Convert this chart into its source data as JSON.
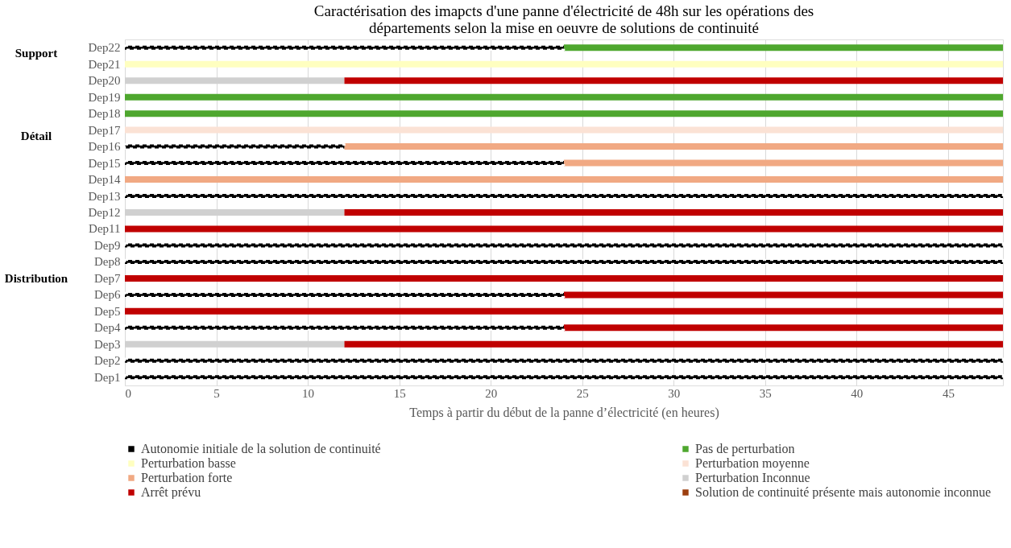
{
  "chart_data": {
    "type": "bar",
    "orientation": "horizontal",
    "stacked": true,
    "title": "Caractérisation des imapcts d'une panne d'électricité de 48h sur les opérations des départements selon la mise en oeuvre de solutions de continuité",
    "xlabel": "Temps à partir du début de la panne d’électricité (en heures)",
    "categories": [
      "Dep22",
      "Dep21",
      "Dep20",
      "Dep19",
      "Dep18",
      "Dep17",
      "Dep16",
      "Dep15",
      "Dep14",
      "Dep13",
      "Dep12",
      "Dep11",
      "Dep9",
      "Dep8",
      "Dep7",
      "Dep6",
      "Dep5",
      "Dep4",
      "Dep3",
      "Dep2",
      "Dep1"
    ],
    "series": [
      {
        "name": "Autonomie initiale de la solution de continuité",
        "color": "#000000",
        "line_style": "dashed",
        "values": [
          24,
          null,
          null,
          null,
          null,
          null,
          12,
          24,
          null,
          48,
          null,
          null,
          48,
          48,
          null,
          24,
          null,
          24,
          null,
          48,
          48
        ]
      },
      {
        "name": "Pas de perturbation",
        "color": "#4ea72e",
        "values": [
          24,
          null,
          null,
          48,
          48,
          null,
          null,
          null,
          null,
          null,
          null,
          null,
          null,
          null,
          null,
          null,
          null,
          null,
          null,
          null,
          null
        ]
      },
      {
        "name": "Perturbation basse",
        "color": "#ffffc0",
        "values": [
          null,
          48,
          null,
          null,
          null,
          null,
          null,
          null,
          null,
          null,
          null,
          null,
          null,
          null,
          null,
          null,
          null,
          null,
          null,
          null,
          null
        ]
      },
      {
        "name": "Perturbation moyenne",
        "color": "#fbe2d5",
        "values": [
          null,
          null,
          null,
          null,
          null,
          48,
          null,
          null,
          null,
          null,
          null,
          null,
          null,
          null,
          null,
          null,
          null,
          null,
          null,
          null,
          null
        ]
      },
      {
        "name": "Perturbation forte",
        "color": "#f1a983",
        "values": [
          null,
          null,
          null,
          null,
          null,
          null,
          36,
          24,
          48,
          null,
          null,
          null,
          null,
          null,
          null,
          null,
          null,
          null,
          null,
          null,
          null
        ]
      },
      {
        "name": "Perturbation Inconnue",
        "color": "#d0d0d0",
        "values": [
          null,
          null,
          12,
          null,
          null,
          null,
          null,
          null,
          null,
          null,
          12,
          null,
          null,
          null,
          null,
          null,
          null,
          null,
          12,
          null,
          null
        ]
      },
      {
        "name": "Arrêt prévu",
        "color": "#c00000",
        "values": [
          null,
          null,
          36,
          null,
          null,
          null,
          null,
          null,
          null,
          null,
          36,
          48,
          null,
          null,
          48,
          24,
          48,
          24,
          36,
          null,
          null
        ]
      },
      {
        "name": "Solution de continuité présente mais autonomie inconnue",
        "color": "#9c3f0f",
        "values": [
          null,
          null,
          null,
          null,
          null,
          null,
          null,
          null,
          null,
          null,
          null,
          null,
          null,
          null,
          null,
          null,
          null,
          null,
          null,
          null,
          null
        ]
      }
    ],
    "xlim": [
      0,
      48
    ],
    "xticks": [
      0,
      5,
      10,
      15,
      20,
      25,
      30,
      35,
      40,
      45
    ],
    "grid": "x",
    "legend": "bottom",
    "annotations": [
      "Support",
      "Détail",
      "Distribution"
    ]
  }
}
